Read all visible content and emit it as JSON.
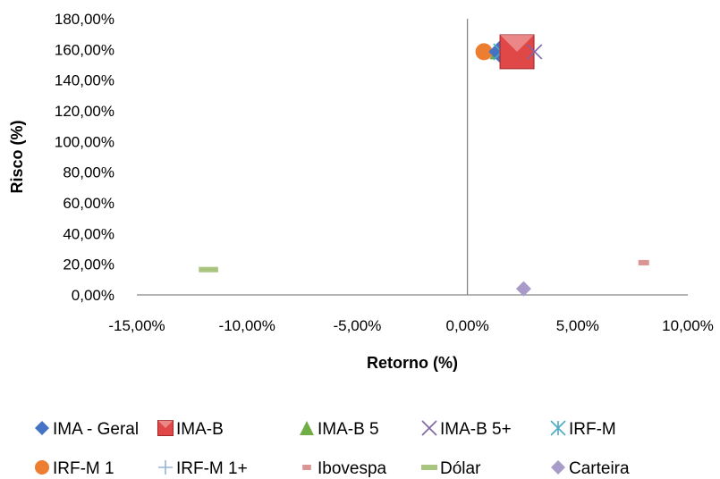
{
  "chart_data": {
    "type": "scatter",
    "xlabel": "Retorno (%)",
    "ylabel": "Risco (%)",
    "xlim": [
      -0.15,
      0.1
    ],
    "ylim": [
      0,
      1.8
    ],
    "x_ticks": [
      -0.15,
      -0.1,
      -0.05,
      0.0,
      0.05,
      0.1
    ],
    "y_ticks": [
      0,
      0.2,
      0.4,
      0.6,
      0.8,
      1.0,
      1.2,
      1.4,
      1.6,
      1.8
    ],
    "x_tick_labels": [
      "-15,00%",
      "-10,00%",
      "-5,00%",
      "0,00%",
      "5,00%",
      "10,00%"
    ],
    "y_tick_labels": [
      "0,00%",
      "20,00%",
      "40,00%",
      "60,00%",
      "80,00%",
      "100,00%",
      "120,00%",
      "140,00%",
      "160,00%",
      "180,00%"
    ],
    "grid": false,
    "legend_position": "bottom",
    "series": [
      {
        "name": "IMA - Geral",
        "marker": "diamond",
        "color": "#4472C4",
        "x": 0.0145,
        "y": 1.585
      },
      {
        "name": "IMA-B",
        "marker": "square",
        "color": "#E04848",
        "x": 0.0225,
        "y": 1.585
      },
      {
        "name": "IMA-B 5",
        "marker": "triangle",
        "color": "#70AD47",
        "x": 0.0135,
        "y": 1.585
      },
      {
        "name": "IMA-B 5+",
        "marker": "x",
        "color": "#7E64A8",
        "x": 0.0305,
        "y": 1.585
      },
      {
        "name": "IRF-M",
        "marker": "star",
        "color": "#4BACC6",
        "x": 0.0155,
        "y": 1.585
      },
      {
        "name": "IRF-M 1",
        "marker": "circle",
        "color": "#ED7D31",
        "x": 0.0075,
        "y": 1.585
      },
      {
        "name": "IRF-M 1+",
        "marker": "plus",
        "color": "#95B3D7",
        "x": 0.0185,
        "y": 1.585
      },
      {
        "name": "Ibovespa",
        "marker": "dash",
        "color": "#D99694",
        "x": 0.08,
        "y": 0.21
      },
      {
        "name": "Dólar",
        "marker": "longdash",
        "color": "#A9C47F",
        "x": -0.1175,
        "y": 0.165
      },
      {
        "name": "Carteira",
        "marker": "diamond",
        "color": "#A89BC9",
        "x": 0.0255,
        "y": 0.04
      }
    ]
  }
}
